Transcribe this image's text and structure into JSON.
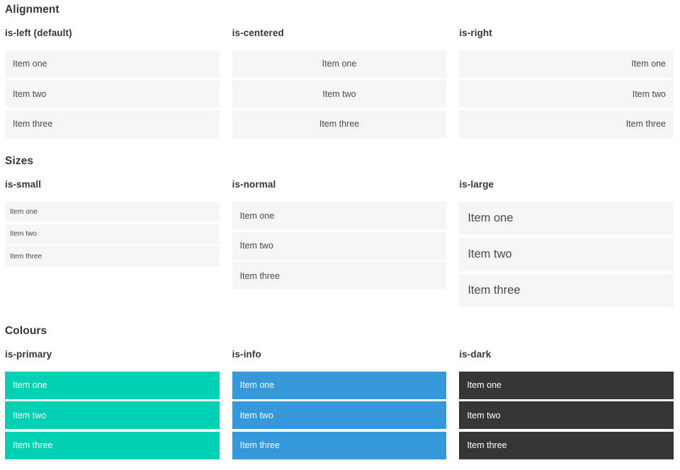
{
  "colors": {
    "page_background": "#ffffff",
    "item_background_light": "#f5f5f5",
    "item_text": "#4a4a4a",
    "heading_text": "#363636",
    "primary": "#00d1b2",
    "info": "#3498db",
    "dark": "#363636",
    "text_on_color": "#ffffff"
  },
  "items": [
    "Item one",
    "Item two",
    "Item three"
  ],
  "sections": [
    {
      "title": "Alignment",
      "columns": [
        {
          "label": "is-left (default)",
          "variant": "align-left"
        },
        {
          "label": "is-centered",
          "variant": "align-center"
        },
        {
          "label": "is-right",
          "variant": "align-right"
        }
      ]
    },
    {
      "title": "Sizes",
      "columns": [
        {
          "label": "is-small",
          "variant": "size-small"
        },
        {
          "label": "is-normal",
          "variant": "size-normal"
        },
        {
          "label": "is-large",
          "variant": "size-large"
        }
      ]
    },
    {
      "title": "Colours",
      "columns": [
        {
          "label": "is-primary",
          "variant": "color-primary"
        },
        {
          "label": "is-info",
          "variant": "color-info"
        },
        {
          "label": "is-dark",
          "variant": "color-dark"
        }
      ]
    }
  ]
}
